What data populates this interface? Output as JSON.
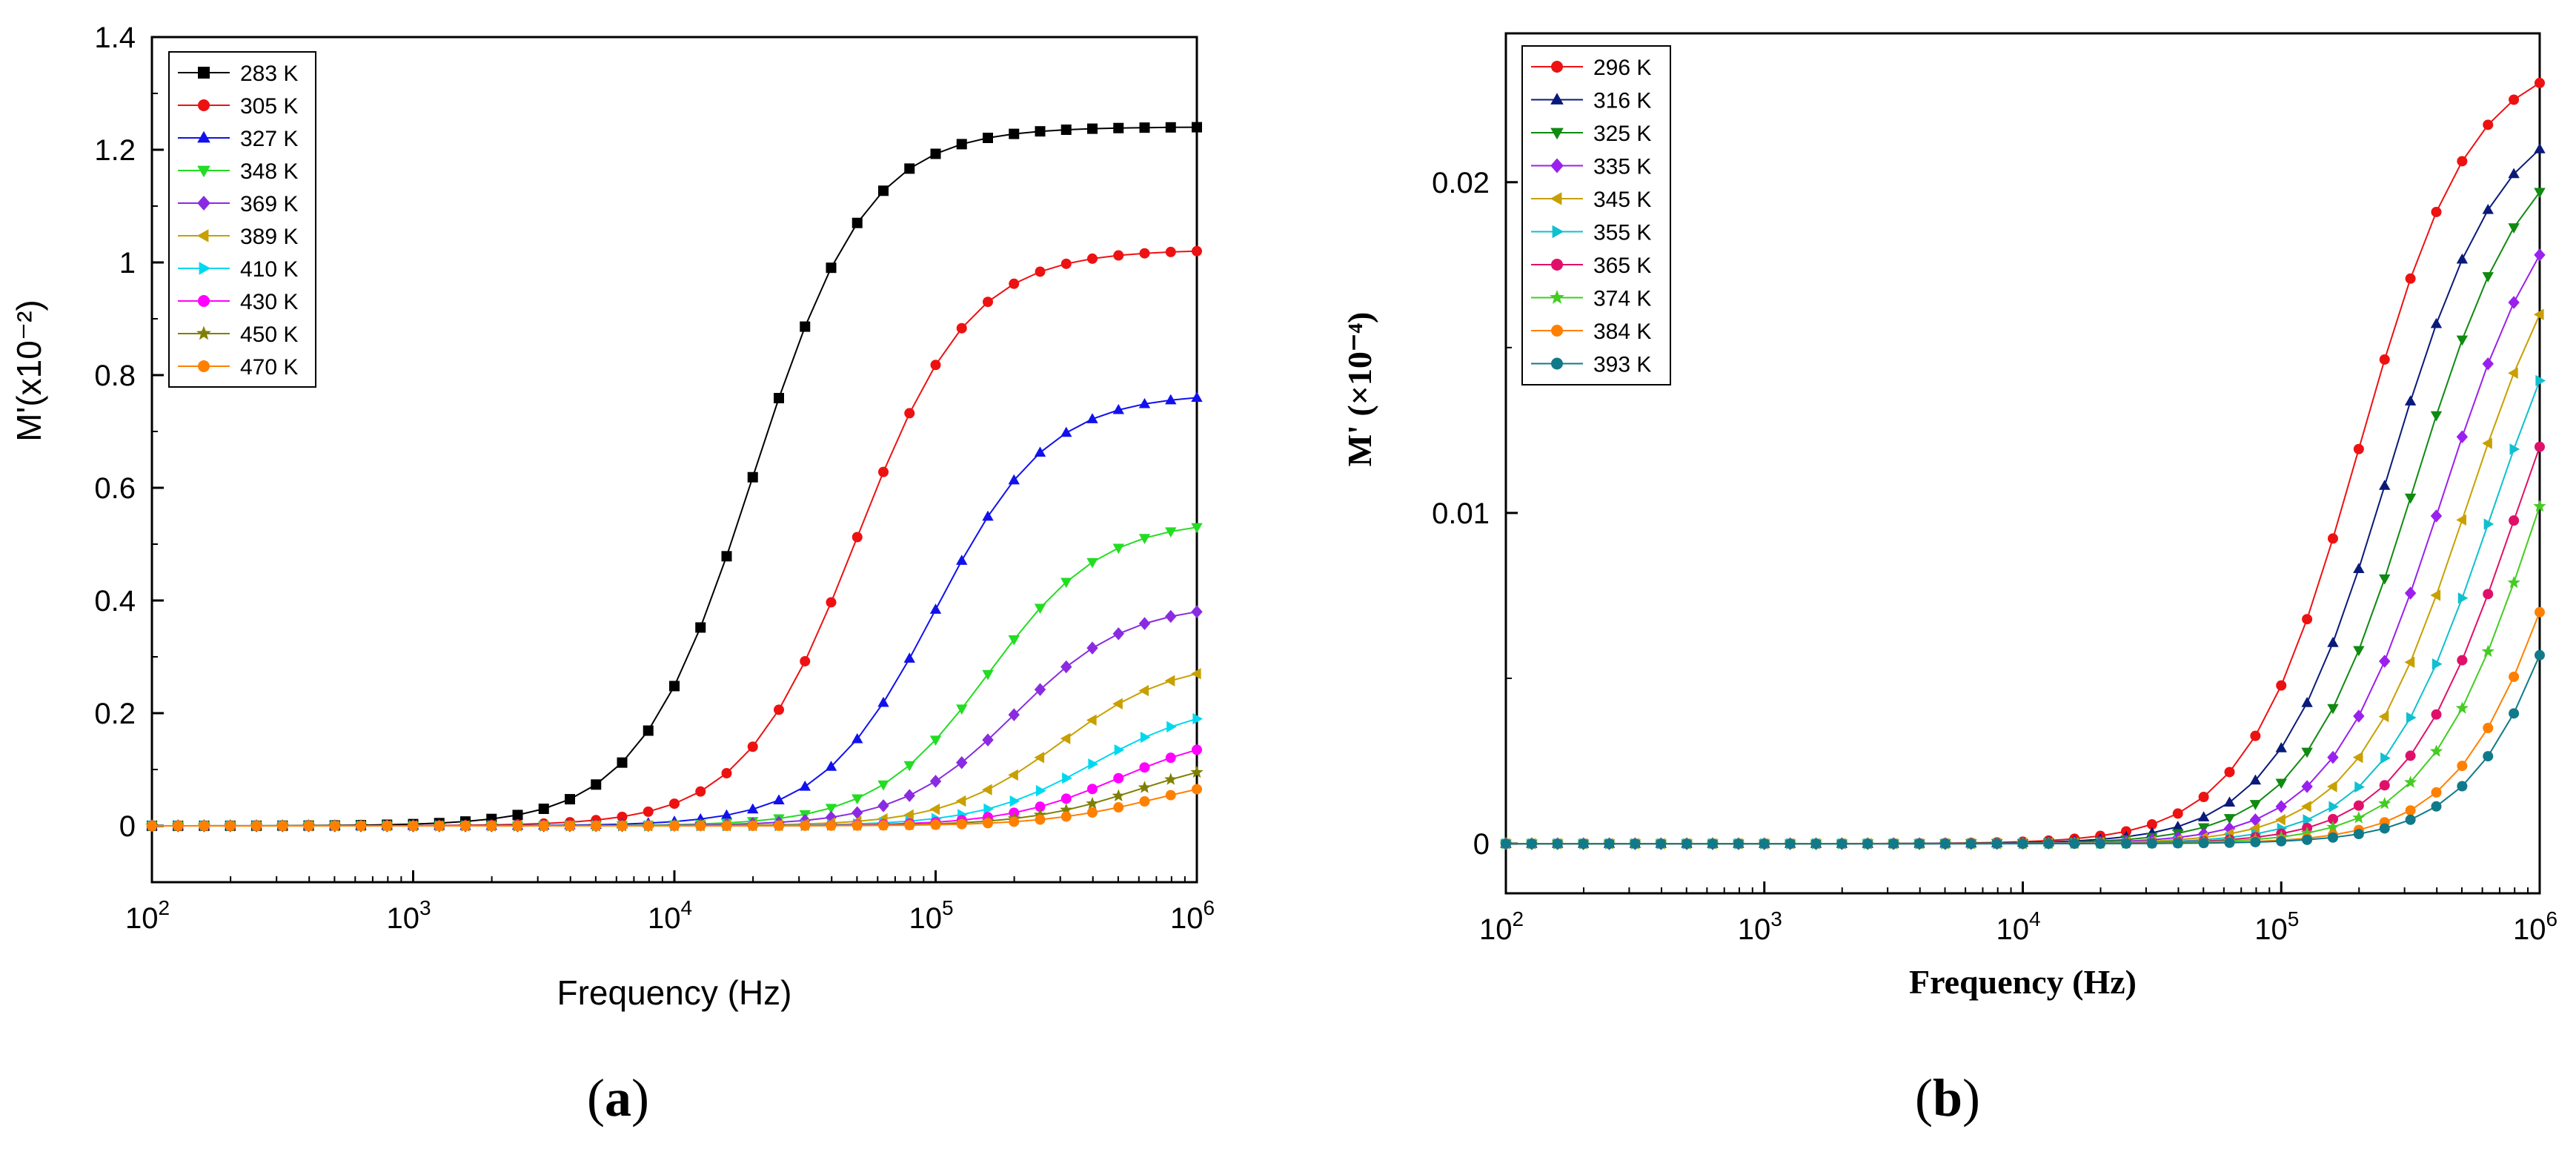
{
  "figure": {
    "panels": [
      {
        "caption_open": "(",
        "caption_letter": "a",
        "caption_close": ")"
      },
      {
        "caption_open": "(",
        "caption_letter": "b",
        "caption_close": ")"
      }
    ]
  },
  "chart_data": [
    {
      "type": "line",
      "xscale": "log",
      "xlim": [
        100,
        1000000
      ],
      "ylim": [
        -0.1,
        1.4
      ],
      "xlabel": "Frequency (Hz)",
      "ylabel": "M'(x10⁻²)",
      "xticks": [
        {
          "value": 100,
          "base": "10",
          "exp": "2"
        },
        {
          "value": 1000,
          "base": "10",
          "exp": "3"
        },
        {
          "value": 10000,
          "base": "10",
          "exp": "4"
        },
        {
          "value": 100000,
          "base": "10",
          "exp": "5"
        },
        {
          "value": 1000000,
          "base": "10",
          "exp": "6"
        }
      ],
      "yticks": [
        {
          "value": 0,
          "label": "0"
        },
        {
          "value": 0.2,
          "label": "0.2"
        },
        {
          "value": 0.4,
          "label": "0.4"
        },
        {
          "value": 0.6,
          "label": "0.6"
        },
        {
          "value": 0.8,
          "label": "0.8"
        },
        {
          "value": 1.0,
          "label": "1"
        },
        {
          "value": 1.2,
          "label": "1.2"
        },
        {
          "value": 1.4,
          "label": "1.4"
        }
      ],
      "grid": false,
      "legend_position": "top-left",
      "points_per_decade": 10,
      "series": [
        {
          "name": "283 K",
          "color": "#000000",
          "marker": "square",
          "knee_hz": 20000,
          "end_value": 1.24
        },
        {
          "name": "305 K",
          "color": "#ee1111",
          "marker": "circle",
          "knee_hz": 50000,
          "end_value": 1.02
        },
        {
          "name": "327 K",
          "color": "#1111ee",
          "marker": "triangle-up",
          "knee_hz": 100000,
          "end_value": 0.76
        },
        {
          "name": "348 K",
          "color": "#22dd22",
          "marker": "triangle-down",
          "knee_hz": 160000,
          "end_value": 0.53
        },
        {
          "name": "369 K",
          "color": "#8a2be2",
          "marker": "diamond",
          "knee_hz": 200000,
          "end_value": 0.38
        },
        {
          "name": "389 K",
          "color": "#c8a000",
          "marker": "triangle-left",
          "knee_hz": 300000,
          "end_value": 0.27
        },
        {
          "name": "410 K",
          "color": "#00d8f0",
          "marker": "triangle-right",
          "knee_hz": 400000,
          "end_value": 0.19
        },
        {
          "name": "430 K",
          "color": "#ff00ff",
          "marker": "circle",
          "knee_hz": 500000,
          "end_value": 0.135
        },
        {
          "name": "450 K",
          "color": "#808000",
          "marker": "star",
          "knee_hz": 600000,
          "end_value": 0.095
        },
        {
          "name": "470 K",
          "color": "#ff8000",
          "marker": "circle",
          "knee_hz": 700000,
          "end_value": 0.065
        }
      ]
    },
    {
      "type": "line",
      "xscale": "log",
      "xlim": [
        100,
        1000000
      ],
      "ylim": [
        -0.0015,
        0.0245
      ],
      "xlabel": "Frequency (Hz)",
      "ylabel": "M' (×10⁻⁴)",
      "xticks": [
        {
          "value": 100,
          "base": "10",
          "exp": "2"
        },
        {
          "value": 1000,
          "base": "10",
          "exp": "3"
        },
        {
          "value": 10000,
          "base": "10",
          "exp": "4"
        },
        {
          "value": 100000,
          "base": "10",
          "exp": "5"
        },
        {
          "value": 1000000,
          "base": "10",
          "exp": "6"
        }
      ],
      "yticks": [
        {
          "value": 0,
          "label": "0"
        },
        {
          "value": 0.01,
          "label": "0.01"
        },
        {
          "value": 0.02,
          "label": "0.02"
        }
      ],
      "grid": false,
      "legend_position": "top-left",
      "points_per_decade": 10,
      "series": [
        {
          "name": "296 K",
          "color": "#ee1111",
          "marker": "circle",
          "knee_hz": 200000,
          "end_value": 0.023
        },
        {
          "name": "316 K",
          "color": "#0a1a7a",
          "marker": "triangle-up",
          "knee_hz": 260000,
          "end_value": 0.021
        },
        {
          "name": "325 K",
          "color": "#108a10",
          "marker": "triangle-down",
          "knee_hz": 330000,
          "end_value": 0.0197
        },
        {
          "name": "335 K",
          "color": "#9a20ee",
          "marker": "diamond",
          "knee_hz": 420000,
          "end_value": 0.0178
        },
        {
          "name": "345 K",
          "color": "#c8a000",
          "marker": "triangle-left",
          "knee_hz": 520000,
          "end_value": 0.016
        },
        {
          "name": "355 K",
          "color": "#10c0d0",
          "marker": "triangle-right",
          "knee_hz": 650000,
          "end_value": 0.014
        },
        {
          "name": "365 K",
          "color": "#e0106a",
          "marker": "circle",
          "knee_hz": 800000,
          "end_value": 0.012
        },
        {
          "name": "374 K",
          "color": "#44cc22",
          "marker": "star",
          "knee_hz": 1000000,
          "end_value": 0.0102
        },
        {
          "name": "384 K",
          "color": "#ff8000",
          "marker": "circle",
          "knee_hz": 1400000,
          "end_value": 0.007
        },
        {
          "name": "393 K",
          "color": "#107a8a",
          "marker": "circle",
          "knee_hz": 1800000,
          "end_value": 0.0057
        }
      ]
    }
  ]
}
